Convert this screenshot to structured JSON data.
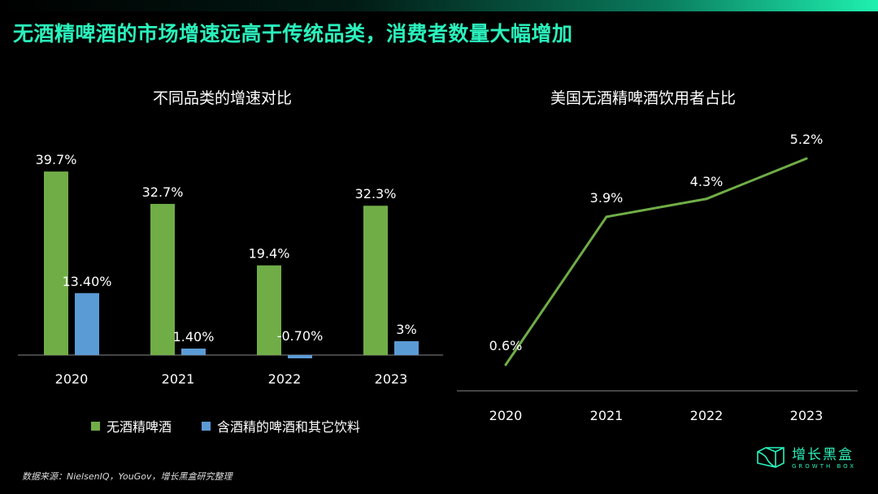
{
  "title": "无酒精啤酒的市场增速远高于传统品类，消费者数量大幅增加",
  "source": "数据来源：NielsenIQ，YouGov，增长黑盒研究整理",
  "logo": {
    "name": "增长黑盒",
    "sub": "GROWTH BOX"
  },
  "colors": {
    "accent": "#2af2bc",
    "green": "#70ad47",
    "blue": "#5b9bd5"
  },
  "chart_data": [
    {
      "type": "bar",
      "title": "不同品类的增速对比",
      "categories": [
        "2020",
        "2021",
        "2022",
        "2023"
      ],
      "series": [
        {
          "name": "无酒精啤酒",
          "values": [
            39.7,
            32.7,
            19.4,
            32.3
          ],
          "labels": [
            "39.7%",
            "32.7%",
            "19.4%",
            "32.3%"
          ],
          "color": "#70ad47"
        },
        {
          "name": "含酒精的啤酒和其它饮料",
          "values": [
            13.4,
            1.4,
            -0.7,
            3
          ],
          "labels": [
            "13.40%",
            "1.40%",
            "-0.70%",
            "3%"
          ],
          "color": "#5b9bd5"
        }
      ],
      "legend": "bottom",
      "grid": false
    },
    {
      "type": "line",
      "title": "美国无酒精啤酒饮用者占比",
      "categories": [
        "2020",
        "2021",
        "2022",
        "2023"
      ],
      "values": [
        0.6,
        3.9,
        4.3,
        5.2
      ],
      "labels": [
        "0.6%",
        "3.9%",
        "4.3%",
        "5.2%"
      ],
      "color": "#70ad47",
      "grid": false
    }
  ]
}
